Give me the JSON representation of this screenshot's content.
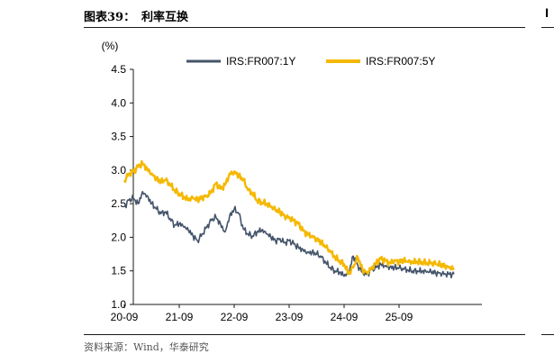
{
  "header": {
    "figure_number": "图表39：",
    "figure_title": "利率互换"
  },
  "footer": {
    "source": "资料来源：Wind，华泰研究"
  },
  "colors": {
    "series_1y": "#44546a",
    "series_5y": "#f5b800",
    "axis": "#1a1a1a"
  },
  "chart_data": {
    "type": "line",
    "ylabel": "(%)",
    "ylim": [
      1.0,
      4.5
    ],
    "yticks": [
      "4.5",
      "4.0",
      "3.5",
      "3.0",
      "2.5",
      "2.0",
      "1.5",
      "1.0"
    ],
    "xticks": [
      "20-09",
      "21-09",
      "22-09",
      "23-09",
      "24-09",
      "25-09"
    ],
    "x_unit": "months since 20-09",
    "x": [
      0,
      1,
      2,
      3,
      4,
      5,
      6,
      7,
      8,
      9,
      10,
      11,
      12,
      13,
      14,
      15,
      16,
      17,
      18,
      19,
      20,
      21,
      22,
      23,
      24,
      25,
      26,
      27,
      28,
      29,
      30,
      31,
      32,
      33,
      34,
      35,
      36,
      37,
      38,
      39,
      40,
      41,
      42,
      43,
      44,
      45,
      46,
      47,
      48,
      49,
      50,
      51,
      52,
      53,
      54,
      55,
      56,
      57,
      58,
      59,
      60,
      61,
      62,
      63,
      64,
      65,
      66,
      67,
      68,
      69,
      70,
      71,
      72
    ],
    "legend_position": "top",
    "grid": false,
    "series": [
      {
        "name": "IRS:FR007:1Y",
        "color": "#44546a",
        "values": [
          2.45,
          2.55,
          2.58,
          2.5,
          2.68,
          2.62,
          2.5,
          2.42,
          2.35,
          2.38,
          2.28,
          2.18,
          2.2,
          2.15,
          2.1,
          2.02,
          1.95,
          2.05,
          2.15,
          2.25,
          2.3,
          2.2,
          2.08,
          2.32,
          2.42,
          2.35,
          2.12,
          2.05,
          2.02,
          2.08,
          2.1,
          2.05,
          2.0,
          1.95,
          1.98,
          1.92,
          1.95,
          1.9,
          1.85,
          1.82,
          1.78,
          1.78,
          1.75,
          1.7,
          1.62,
          1.55,
          1.5,
          1.48,
          1.42,
          1.46,
          1.72,
          1.58,
          1.48,
          1.45,
          1.52,
          1.55,
          1.6,
          1.58,
          1.56,
          1.55,
          1.54,
          1.52,
          1.51,
          1.5,
          1.5,
          1.49,
          1.48,
          1.48,
          1.47,
          1.47,
          1.46,
          1.45,
          1.45
        ]
      },
      {
        "name": "IRS:FR007:5Y",
        "color": "#f5b800",
        "values": [
          2.85,
          2.95,
          2.98,
          3.05,
          3.1,
          3.02,
          2.95,
          2.88,
          2.82,
          2.85,
          2.78,
          2.7,
          2.65,
          2.6,
          2.55,
          2.58,
          2.55,
          2.6,
          2.62,
          2.68,
          2.8,
          2.72,
          2.78,
          2.95,
          2.98,
          2.92,
          2.85,
          2.7,
          2.65,
          2.55,
          2.52,
          2.5,
          2.45,
          2.4,
          2.38,
          2.32,
          2.3,
          2.25,
          2.2,
          2.1,
          2.05,
          2.02,
          1.98,
          1.92,
          1.85,
          1.78,
          1.7,
          1.65,
          1.6,
          1.45,
          1.55,
          1.7,
          1.52,
          1.48,
          1.55,
          1.62,
          1.68,
          1.65,
          1.62,
          1.66,
          1.64,
          1.65,
          1.63,
          1.62,
          1.64,
          1.63,
          1.62,
          1.61,
          1.6,
          1.59,
          1.58,
          1.56,
          1.54
        ]
      }
    ]
  }
}
